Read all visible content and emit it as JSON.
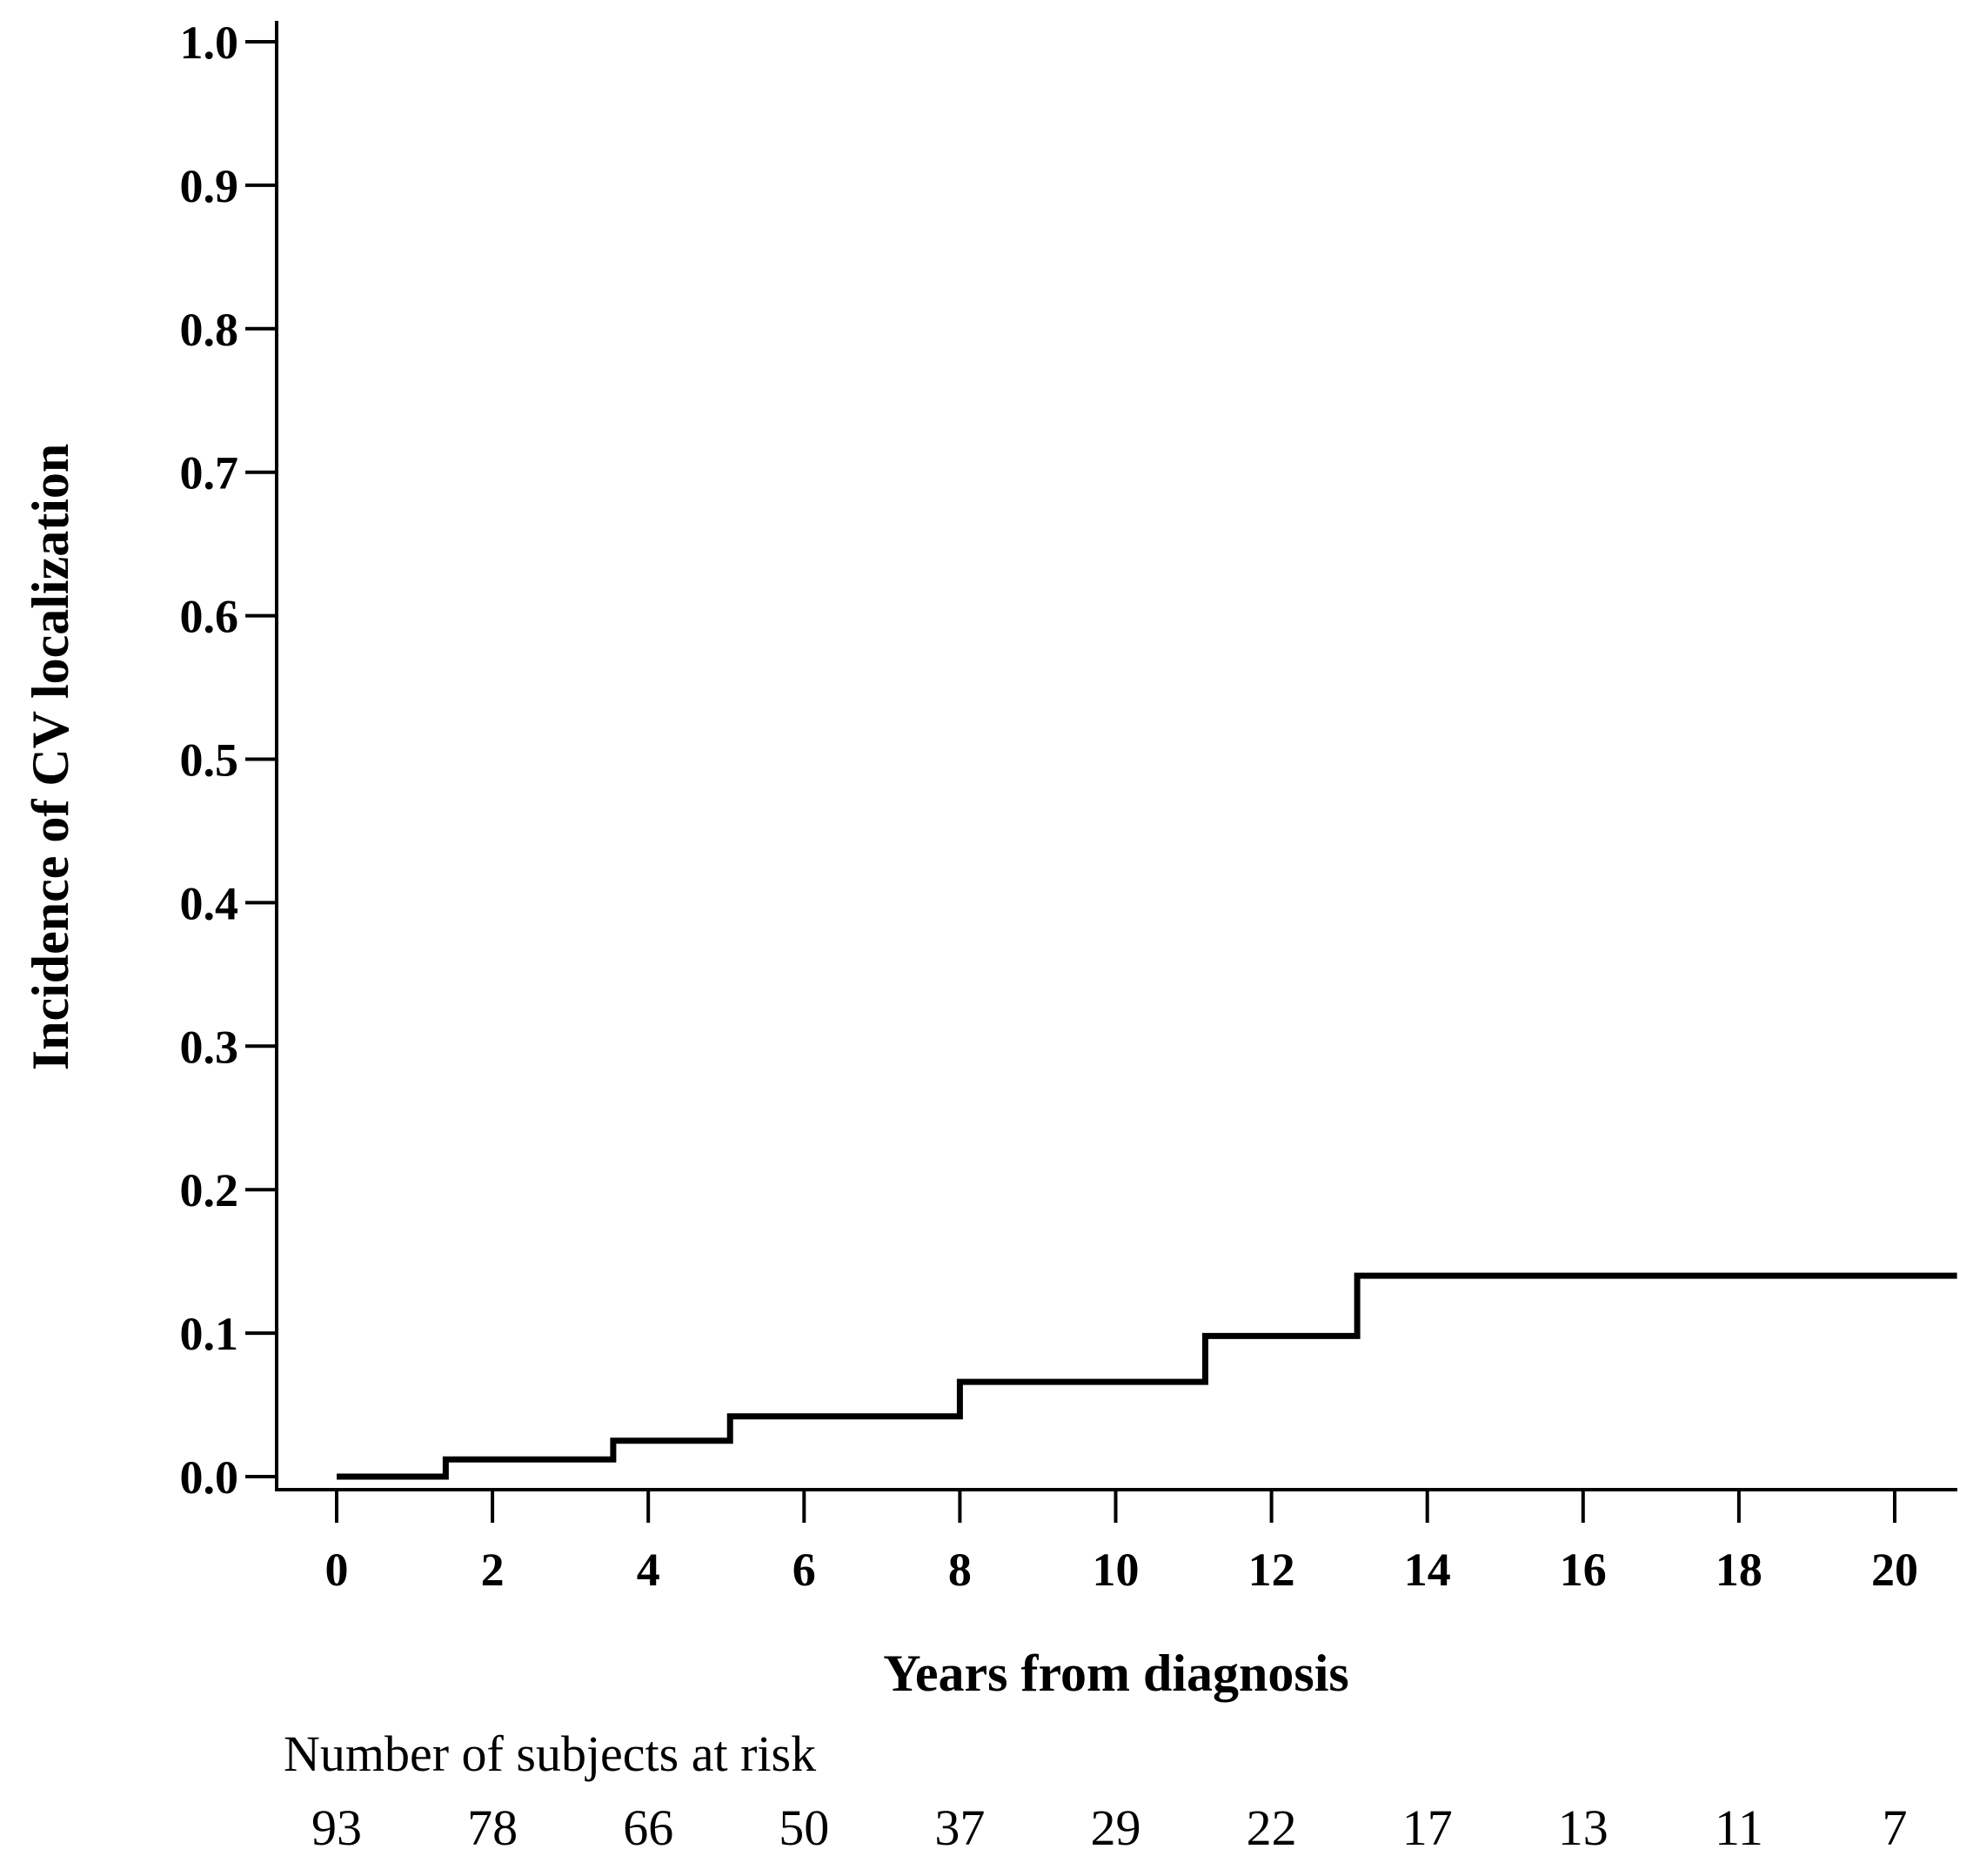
{
  "chart_data": {
    "type": "line",
    "step": true,
    "xlabel": "Years from diagnosis",
    "ylabel": "Incidence of CV localization",
    "xlim": [
      -0.8,
      20.8
    ],
    "ylim": [
      -0.01,
      1.01
    ],
    "x_ticks": [
      "0",
      "2",
      "4",
      "6",
      "8",
      "10",
      "12",
      "14",
      "16",
      "18",
      "20"
    ],
    "y_ticks": [
      "0.0",
      "0.1",
      "0.2",
      "0.3",
      "0.4",
      "0.5",
      "0.6",
      "0.7",
      "0.8",
      "0.9",
      "1.0"
    ],
    "grid": false,
    "legend": "none",
    "line_color": "#000000",
    "series": [
      {
        "x": [
          0,
          1.4,
          3.55,
          5.05,
          8.0,
          11.15,
          13.1,
          20.8
        ],
        "y": [
          0.0,
          0.012,
          0.025,
          0.042,
          0.066,
          0.098,
          0.14,
          0.14
        ]
      }
    ],
    "risk_table": {
      "title": "Number of subjects at risk",
      "x": [
        0,
        2,
        4,
        6,
        8,
        10,
        12,
        14,
        16,
        18,
        20
      ],
      "values": [
        "93",
        "78",
        "66",
        "50",
        "37",
        "29",
        "22",
        "17",
        "13",
        "11",
        "7"
      ]
    }
  }
}
